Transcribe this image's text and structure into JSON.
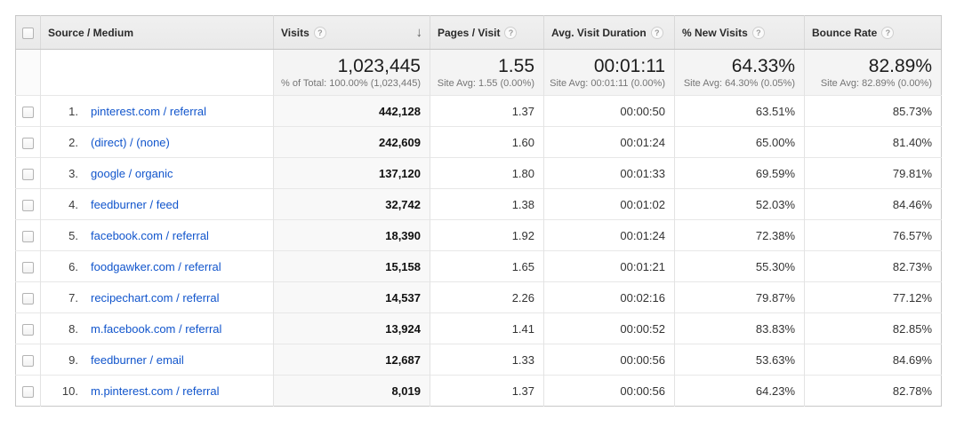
{
  "columns": [
    {
      "label": "Source / Medium",
      "help": false,
      "sorted": false
    },
    {
      "label": "Visits",
      "help": true,
      "sorted": true
    },
    {
      "label": "Pages / Visit",
      "help": true,
      "sorted": false
    },
    {
      "label": "Avg. Visit Duration",
      "help": true,
      "sorted": false
    },
    {
      "label": "% New Visits",
      "help": true,
      "sorted": false
    },
    {
      "label": "Bounce Rate",
      "help": true,
      "sorted": false
    }
  ],
  "icons": {
    "help": "?",
    "sort_desc": "↓"
  },
  "summary": {
    "visits": "1,023,445",
    "visits_sub": "% of Total: 100.00% (1,023,445)",
    "pages_per_visit": "1.55",
    "pages_per_visit_sub": "Site Avg: 1.55 (0.00%)",
    "avg_visit_duration": "00:01:11",
    "avg_visit_duration_sub": "Site Avg: 00:01:11 (0.00%)",
    "pct_new_visits": "64.33%",
    "pct_new_visits_sub": "Site Avg: 64.30% (0.05%)",
    "bounce_rate": "82.89%",
    "bounce_rate_sub": "Site Avg: 82.89% (0.00%)"
  },
  "rows": [
    {
      "index": "1.",
      "source": "pinterest.com / referral",
      "visits": "442,128",
      "pages_per_visit": "1.37",
      "avg_visit_duration": "00:00:50",
      "pct_new_visits": "63.51%",
      "bounce_rate": "85.73%"
    },
    {
      "index": "2.",
      "source": "(direct) / (none)",
      "visits": "242,609",
      "pages_per_visit": "1.60",
      "avg_visit_duration": "00:01:24",
      "pct_new_visits": "65.00%",
      "bounce_rate": "81.40%"
    },
    {
      "index": "3.",
      "source": "google / organic",
      "visits": "137,120",
      "pages_per_visit": "1.80",
      "avg_visit_duration": "00:01:33",
      "pct_new_visits": "69.59%",
      "bounce_rate": "79.81%"
    },
    {
      "index": "4.",
      "source": "feedburner / feed",
      "visits": "32,742",
      "pages_per_visit": "1.38",
      "avg_visit_duration": "00:01:02",
      "pct_new_visits": "52.03%",
      "bounce_rate": "84.46%"
    },
    {
      "index": "5.",
      "source": "facebook.com / referral",
      "visits": "18,390",
      "pages_per_visit": "1.92",
      "avg_visit_duration": "00:01:24",
      "pct_new_visits": "72.38%",
      "bounce_rate": "76.57%"
    },
    {
      "index": "6.",
      "source": "foodgawker.com / referral",
      "visits": "15,158",
      "pages_per_visit": "1.65",
      "avg_visit_duration": "00:01:21",
      "pct_new_visits": "55.30%",
      "bounce_rate": "82.73%"
    },
    {
      "index": "7.",
      "source": "recipechart.com / referral",
      "visits": "14,537",
      "pages_per_visit": "2.26",
      "avg_visit_duration": "00:02:16",
      "pct_new_visits": "79.87%",
      "bounce_rate": "77.12%"
    },
    {
      "index": "8.",
      "source": "m.facebook.com / referral",
      "visits": "13,924",
      "pages_per_visit": "1.41",
      "avg_visit_duration": "00:00:52",
      "pct_new_visits": "83.83%",
      "bounce_rate": "82.85%"
    },
    {
      "index": "9.",
      "source": "feedburner / email",
      "visits": "12,687",
      "pages_per_visit": "1.33",
      "avg_visit_duration": "00:00:56",
      "pct_new_visits": "53.63%",
      "bounce_rate": "84.69%"
    },
    {
      "index": "10.",
      "source": "m.pinterest.com / referral",
      "visits": "8,019",
      "pages_per_visit": "1.37",
      "avg_visit_duration": "00:00:56",
      "pct_new_visits": "64.23%",
      "bounce_rate": "82.78%"
    }
  ],
  "colors": {
    "link": "#1155cc",
    "header_bg": "#ededed",
    "summary_bg": "#f4f4f4",
    "sorted_col_bg": "#f8f8f8"
  }
}
